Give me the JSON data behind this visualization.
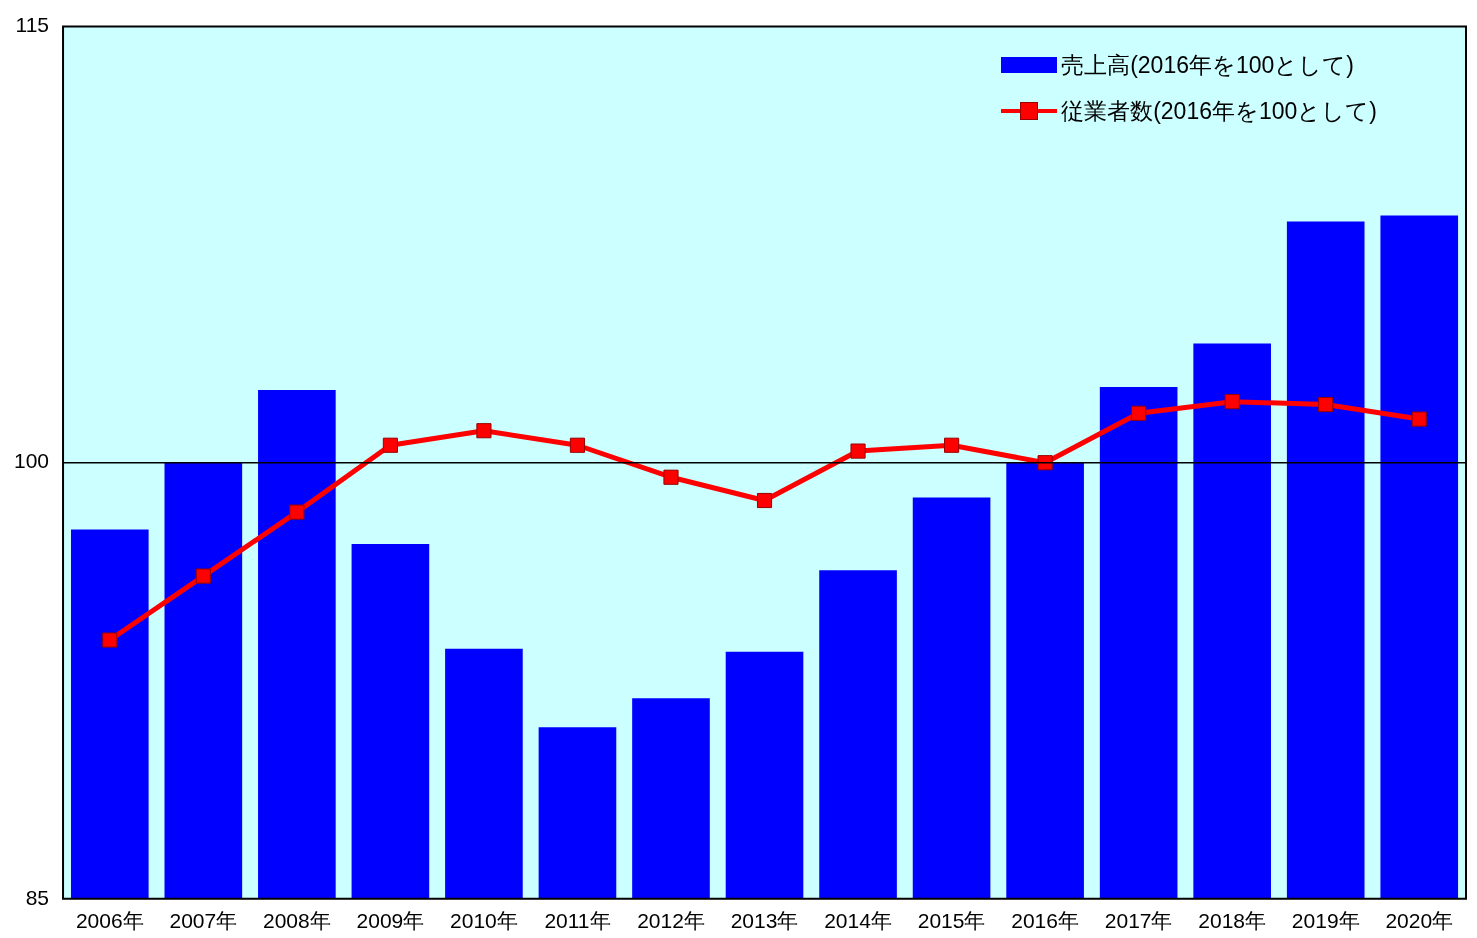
{
  "chart_data": {
    "type": "bar",
    "categories": [
      "2006年",
      "2007年",
      "2008年",
      "2009年",
      "2010年",
      "2011年",
      "2012年",
      "2013年",
      "2014年",
      "2015年",
      "2016年",
      "2017年",
      "2018年",
      "2019年",
      "2020年"
    ],
    "series": [
      {
        "name": "売上高(2016年を100として)",
        "color": "#0000ff",
        "values": [
          97.7,
          100,
          102.5,
          97.2,
          93.6,
          90.9,
          91.9,
          93.5,
          96.3,
          98.8,
          100,
          102.6,
          104.1,
          108.3,
          108.5
        ]
      },
      {
        "name": "従業者数(2016年を100として)",
        "type": "line",
        "color": "#ff0000",
        "values": [
          93.9,
          96.1,
          98.3,
          100.6,
          101.1,
          100.6,
          99.5,
          98.7,
          100.4,
          100.6,
          100,
          101.7,
          102.1,
          102,
          101.5
        ]
      }
    ],
    "ylim": [
      85,
      115
    ],
    "yticks": [
      85,
      100,
      115
    ],
    "legend": "top right",
    "marker": "square",
    "line_style": "solid",
    "ref_lines": [
      {
        "axis": "y",
        "value": 100,
        "color": "#000000"
      }
    ]
  }
}
